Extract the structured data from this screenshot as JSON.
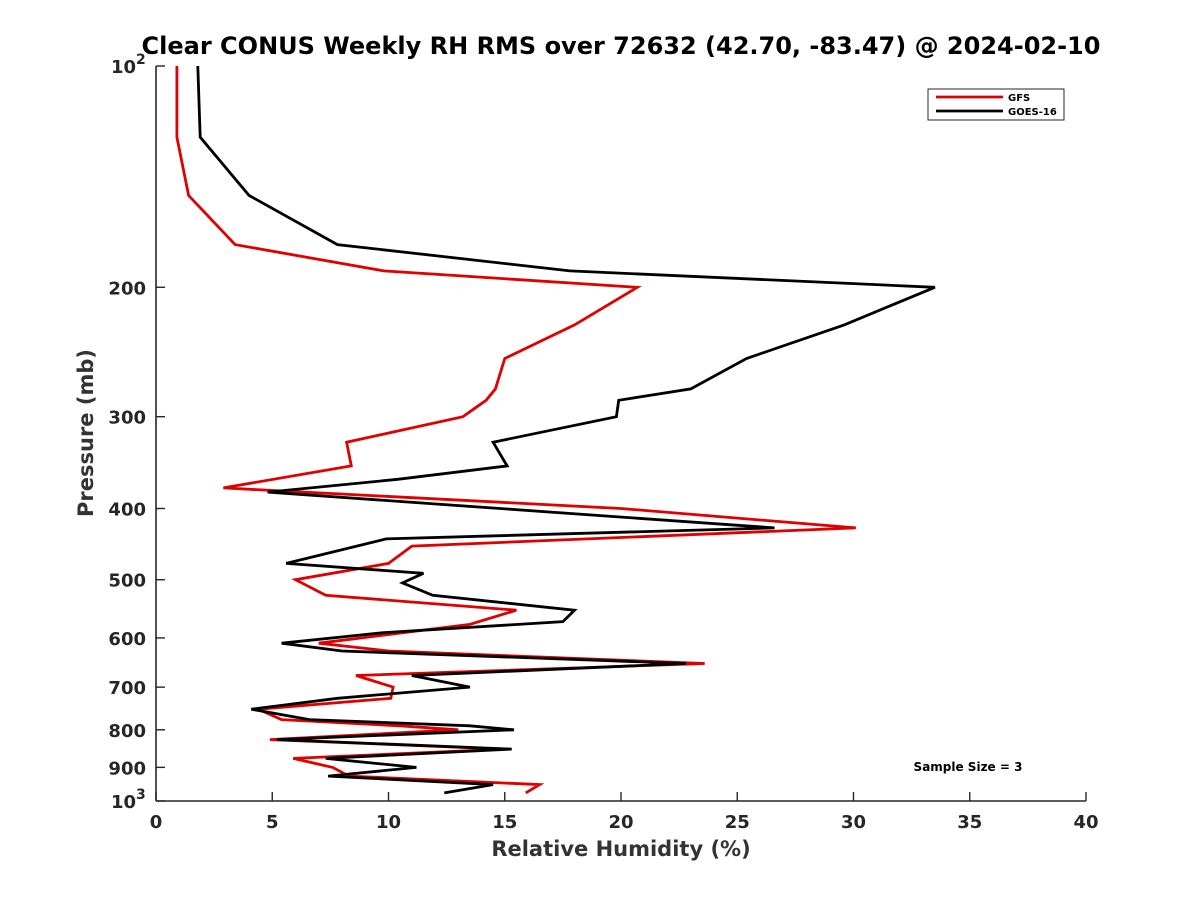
{
  "chart_data": {
    "type": "line",
    "title": "Clear CONUS Weekly RH RMS over 72632 (42.70, -83.47) @ 2024-02-10",
    "xlabel": "Relative Humidity (%)",
    "ylabel": "Pressure (mb)",
    "xlim": [
      0,
      40
    ],
    "ylim": [
      100,
      1000
    ],
    "y_scale": "log",
    "y_reversed": true,
    "x_ticks": [
      0,
      5,
      10,
      15,
      20,
      25,
      30,
      35,
      40
    ],
    "y_ticks": [
      {
        "value": 100,
        "base": "10",
        "exp": "2"
      },
      {
        "value": 200,
        "label": "200"
      },
      {
        "value": 300,
        "label": "300"
      },
      {
        "value": 400,
        "label": "400"
      },
      {
        "value": 500,
        "label": "500"
      },
      {
        "value": 600,
        "label": "600"
      },
      {
        "value": 700,
        "label": "700"
      },
      {
        "value": 800,
        "label": "800"
      },
      {
        "value": 900,
        "label": "900"
      },
      {
        "value": 1000,
        "base": "10",
        "exp": "3"
      }
    ],
    "grid": false,
    "legend_position": "top-right",
    "annotation": "Sample Size = 3",
    "series": [
      {
        "name": "GFS",
        "color": "#e00000",
        "points": [
          [
            0.9,
            100
          ],
          [
            0.9,
            125
          ],
          [
            1.4,
            150
          ],
          [
            3.4,
            175
          ],
          [
            9.8,
            190
          ],
          [
            20.7,
            200
          ],
          [
            18.0,
            225
          ],
          [
            15.0,
            250
          ],
          [
            14.6,
            275
          ],
          [
            14.2,
            285
          ],
          [
            13.2,
            300
          ],
          [
            8.2,
            325
          ],
          [
            8.4,
            350
          ],
          [
            2.9,
            375
          ],
          [
            20.0,
            400
          ],
          [
            30.1,
            425
          ],
          [
            11.0,
            450
          ],
          [
            10.0,
            475
          ],
          [
            6.0,
            500
          ],
          [
            7.3,
            525
          ],
          [
            15.5,
            550
          ],
          [
            13.5,
            575
          ],
          [
            7.0,
            610
          ],
          [
            10.0,
            625
          ],
          [
            23.6,
            650
          ],
          [
            8.6,
            675
          ],
          [
            10.2,
            700
          ],
          [
            10.1,
            725
          ],
          [
            4.4,
            750
          ],
          [
            5.4,
            775
          ],
          [
            10.5,
            790
          ],
          [
            13.0,
            800
          ],
          [
            4.9,
            825
          ],
          [
            15.0,
            850
          ],
          [
            5.9,
            875
          ],
          [
            7.6,
            900
          ],
          [
            8.3,
            925
          ],
          [
            16.5,
            950
          ],
          [
            15.9,
            975
          ]
        ]
      },
      {
        "name": "GOES-16",
        "color": "#000000",
        "points": [
          [
            1.8,
            100
          ],
          [
            1.9,
            125
          ],
          [
            4.0,
            150
          ],
          [
            7.8,
            175
          ],
          [
            17.8,
            190
          ],
          [
            33.5,
            200
          ],
          [
            29.6,
            225
          ],
          [
            25.4,
            250
          ],
          [
            23.0,
            275
          ],
          [
            19.9,
            285
          ],
          [
            19.8,
            300
          ],
          [
            14.5,
            325
          ],
          [
            15.1,
            350
          ],
          [
            10.4,
            365
          ],
          [
            4.8,
            380
          ],
          [
            26.6,
            425
          ],
          [
            9.9,
            440
          ],
          [
            5.6,
            475
          ],
          [
            11.5,
            490
          ],
          [
            10.6,
            505
          ],
          [
            11.9,
            525
          ],
          [
            18.0,
            550
          ],
          [
            17.5,
            570
          ],
          [
            9.8,
            590
          ],
          [
            5.4,
            610
          ],
          [
            8.0,
            625
          ],
          [
            22.8,
            650
          ],
          [
            11.0,
            675
          ],
          [
            13.5,
            700
          ],
          [
            7.8,
            725
          ],
          [
            4.1,
            750
          ],
          [
            6.6,
            775
          ],
          [
            13.5,
            790
          ],
          [
            15.4,
            800
          ],
          [
            5.2,
            825
          ],
          [
            15.3,
            850
          ],
          [
            7.3,
            875
          ],
          [
            11.2,
            900
          ],
          [
            7.4,
            925
          ],
          [
            14.5,
            950
          ],
          [
            12.4,
            975
          ]
        ]
      }
    ]
  }
}
